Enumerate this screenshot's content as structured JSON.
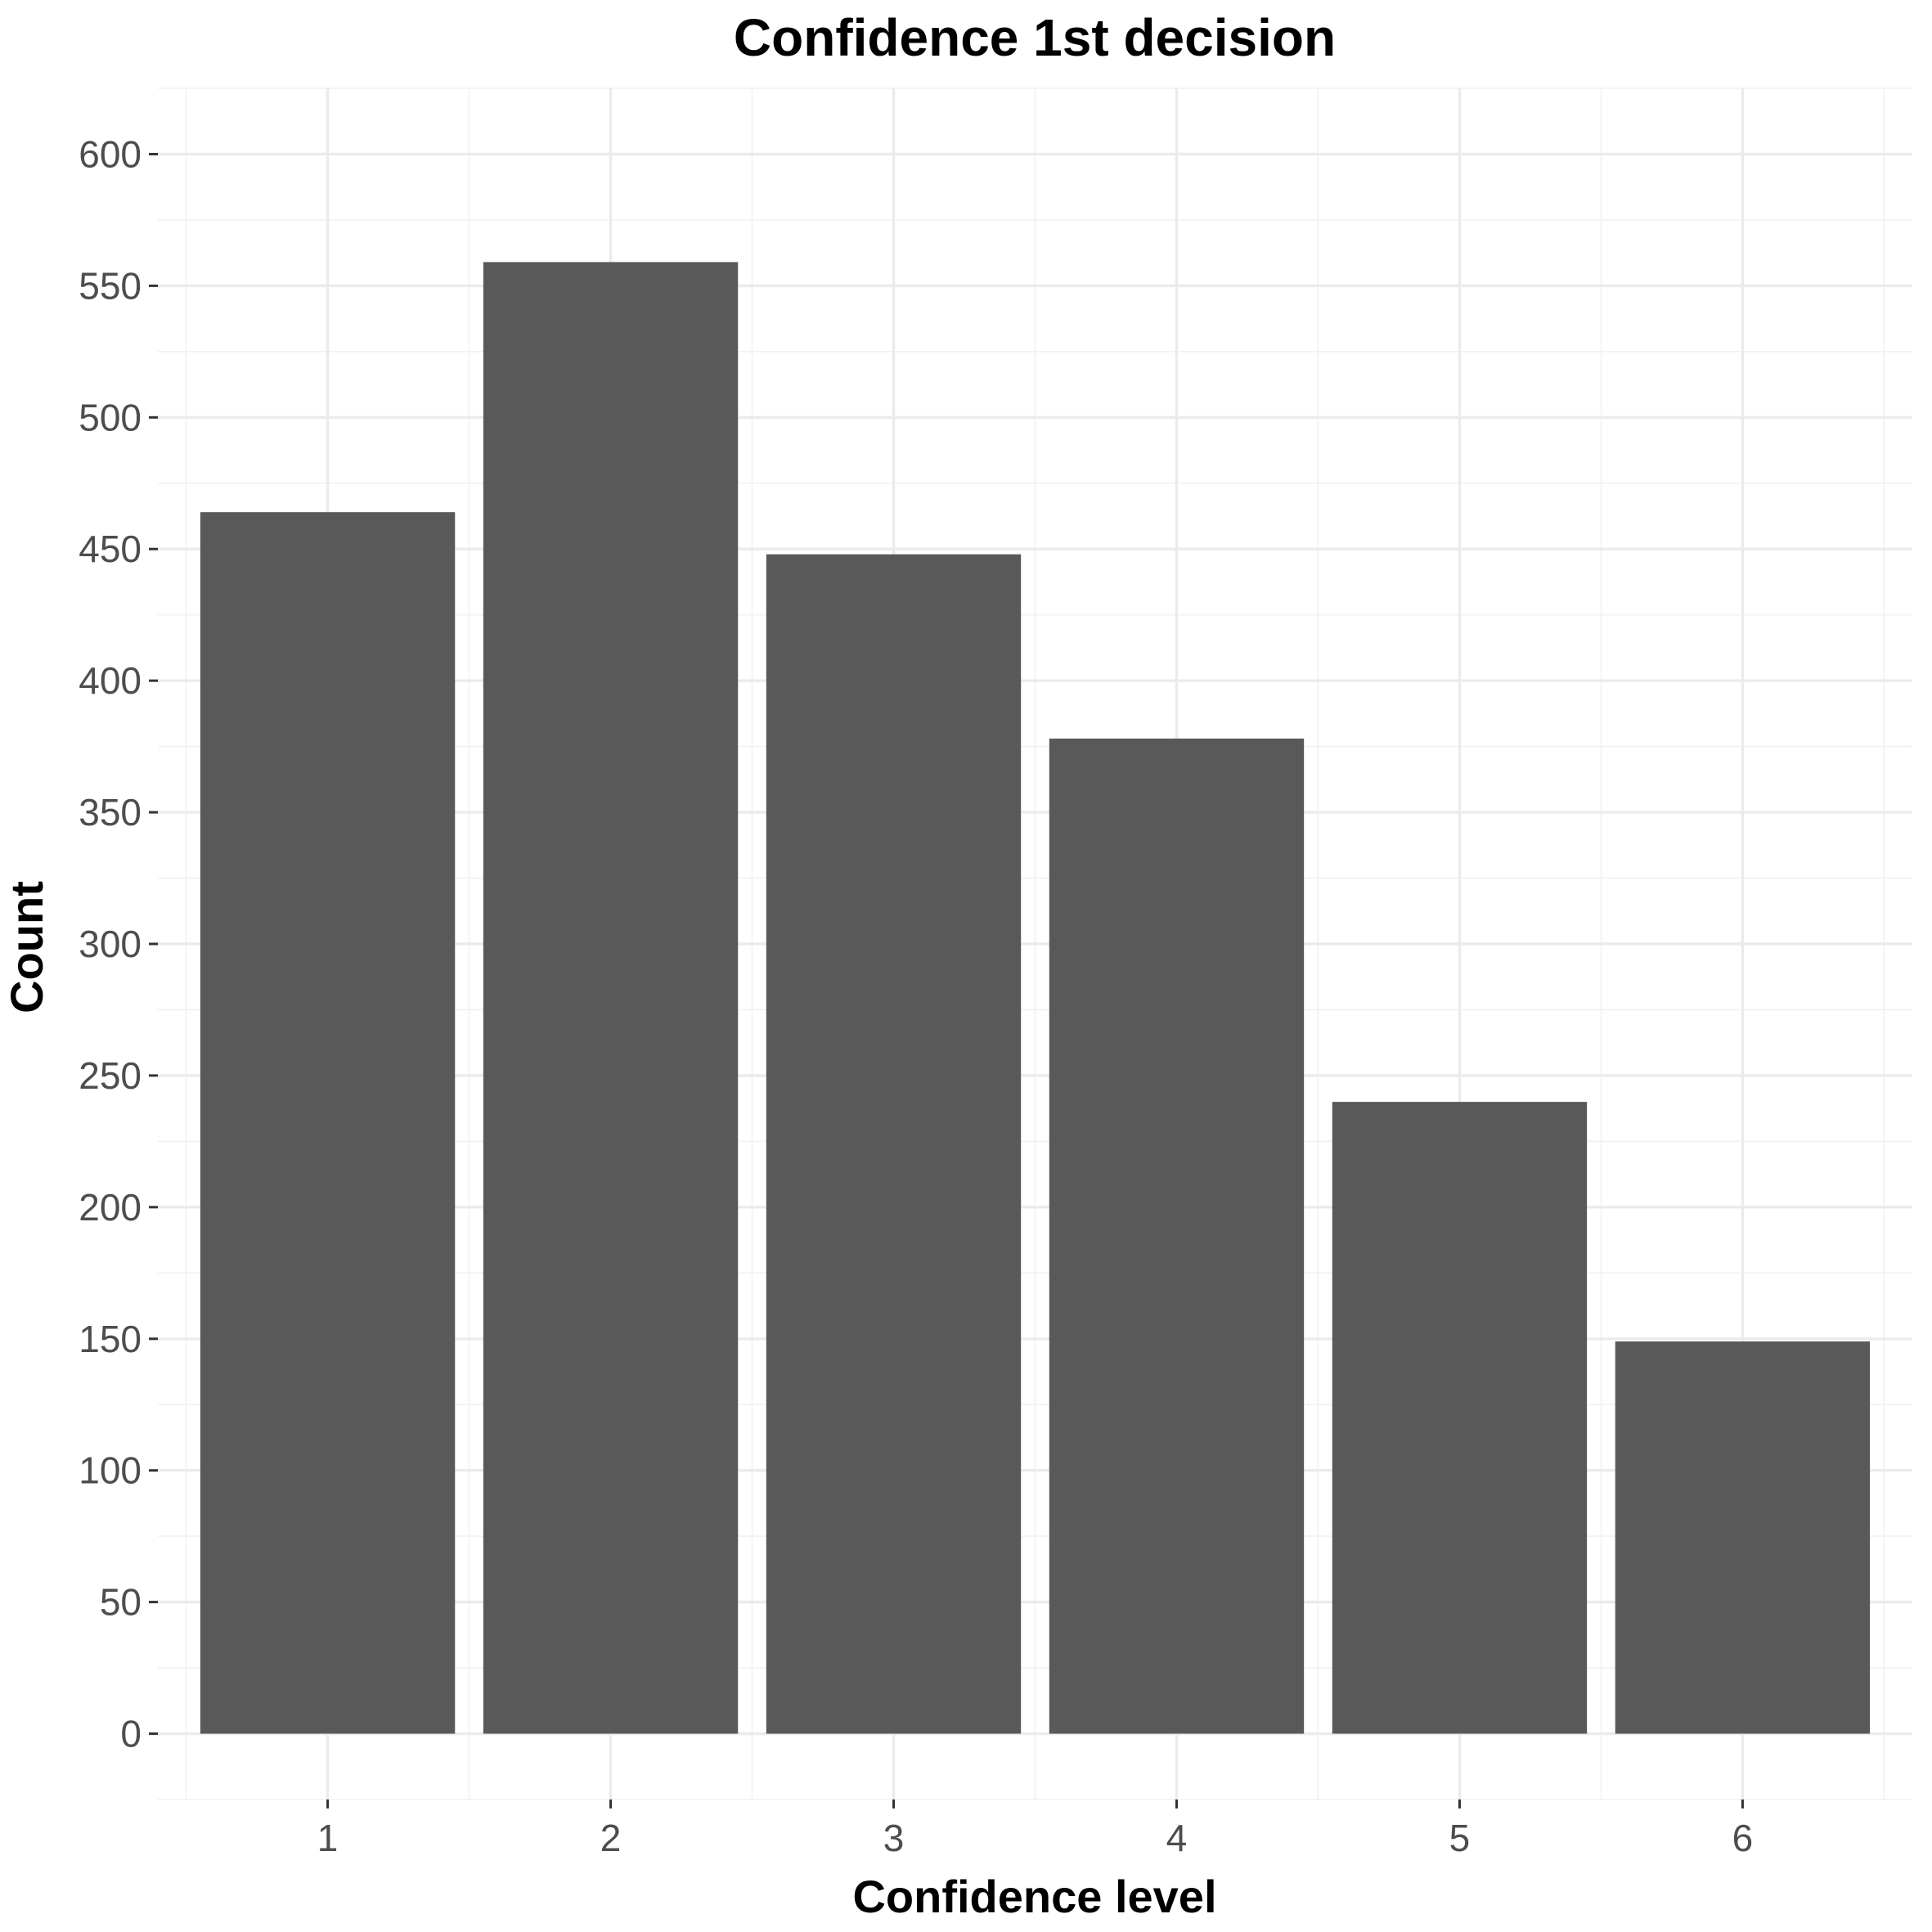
{
  "chart_data": {
    "type": "bar",
    "title": "Confidence 1st decision",
    "xlabel": "Confidence level",
    "ylabel": "Count",
    "categories": [
      "1",
      "2",
      "3",
      "4",
      "5",
      "6"
    ],
    "values": [
      464,
      559,
      448,
      378,
      240,
      149
    ],
    "ylim": [
      -25,
      625
    ],
    "yticks": [
      0,
      50,
      100,
      150,
      200,
      250,
      300,
      350,
      400,
      450,
      500,
      550,
      600
    ],
    "ytick_labels": [
      "0",
      "50",
      "100",
      "150",
      "200",
      "250",
      "300",
      "350",
      "400",
      "450",
      "500",
      "550",
      "600"
    ],
    "bar_color": "#595959",
    "background": "#ffffff",
    "grid": true,
    "legend": "none"
  }
}
